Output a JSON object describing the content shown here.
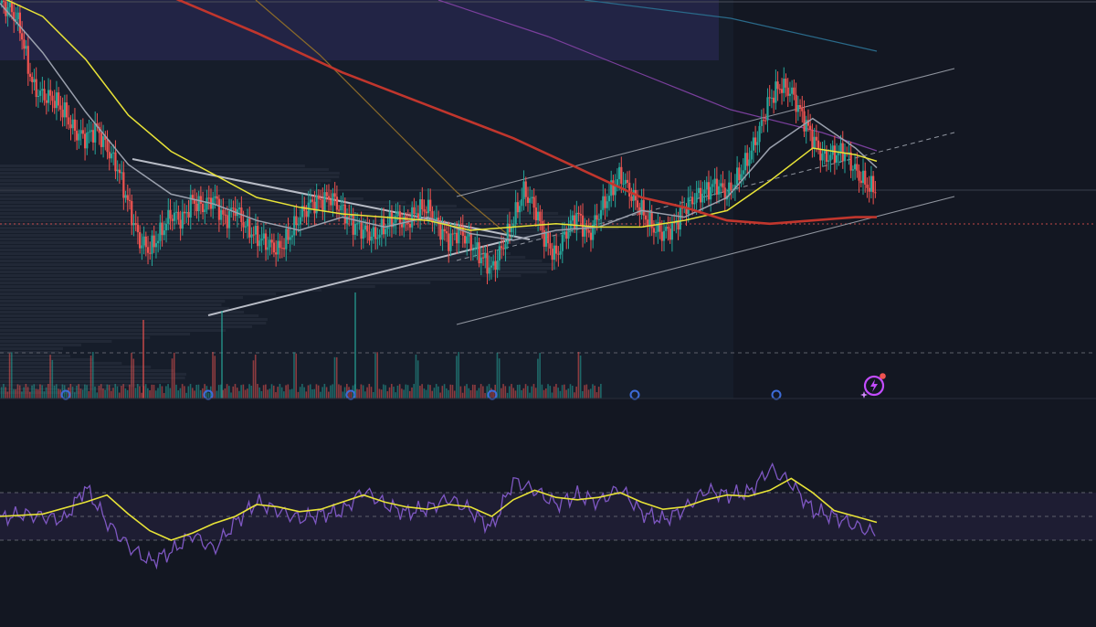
{
  "theme": {
    "background": "#131722",
    "shade_background": "#1a2232",
    "up_color": "#26a69a",
    "down_color": "#ef5350",
    "ma_fast_color": "#9aa0ad",
    "ma_mid_color": "#e8e337",
    "ma_slow_color": "#c1362d",
    "ma_orange_color": "#8a6a2a",
    "ma_purple_color": "#7a3f9c",
    "ma_blue_color": "#2a6a8a",
    "rsi_color": "#7e57c2",
    "rsi_ma_color": "#e8e337",
    "trendline_color": "#b8bcc6",
    "channel_color": "#8f949e",
    "event_marker_color": "#3d6cd9"
  },
  "icons": {
    "assistant": "sparkle-lightning-icon"
  },
  "chart_data": [
    {
      "type": "candlestick",
      "pane": "price",
      "title": "",
      "x_range": [
        0,
        410
      ],
      "ylim": [
        0,
        100
      ],
      "grid": false,
      "ohlc_close_path": [
        [
          0,
          99
        ],
        [
          5,
          97
        ],
        [
          8,
          94
        ],
        [
          10,
          90
        ],
        [
          13,
          80
        ],
        [
          16,
          73
        ],
        [
          20,
          71
        ],
        [
          25,
          70
        ],
        [
          30,
          66
        ],
        [
          35,
          60
        ],
        [
          40,
          58
        ],
        [
          45,
          61
        ],
        [
          50,
          55
        ],
        [
          55,
          49
        ],
        [
          60,
          38
        ],
        [
          65,
          27
        ],
        [
          70,
          24
        ],
        [
          75,
          29
        ],
        [
          80,
          35
        ],
        [
          85,
          33
        ],
        [
          90,
          39
        ],
        [
          95,
          37
        ],
        [
          100,
          40
        ],
        [
          105,
          33
        ],
        [
          110,
          37
        ],
        [
          115,
          31
        ],
        [
          120,
          28
        ],
        [
          125,
          26
        ],
        [
          130,
          24
        ],
        [
          135,
          28
        ],
        [
          140,
          34
        ],
        [
          145,
          38
        ],
        [
          150,
          39
        ],
        [
          155,
          40
        ],
        [
          160,
          36
        ],
        [
          165,
          32
        ],
        [
          170,
          30
        ],
        [
          175,
          28
        ],
        [
          180,
          31
        ],
        [
          185,
          34
        ],
        [
          190,
          32
        ],
        [
          195,
          36
        ],
        [
          200,
          37
        ],
        [
          205,
          31
        ],
        [
          210,
          27
        ],
        [
          215,
          30
        ],
        [
          220,
          26
        ],
        [
          225,
          22
        ],
        [
          230,
          18
        ],
        [
          235,
          25
        ],
        [
          240,
          33
        ],
        [
          245,
          42
        ],
        [
          250,
          37
        ],
        [
          255,
          27
        ],
        [
          260,
          22
        ],
        [
          265,
          30
        ],
        [
          270,
          35
        ],
        [
          275,
          28
        ],
        [
          280,
          35
        ],
        [
          285,
          41
        ],
        [
          290,
          47
        ],
        [
          295,
          41
        ],
        [
          300,
          36
        ],
        [
          305,
          31
        ],
        [
          310,
          29
        ],
        [
          315,
          31
        ],
        [
          320,
          37
        ],
        [
          325,
          40
        ],
        [
          330,
          42
        ],
        [
          335,
          44
        ],
        [
          340,
          41
        ],
        [
          345,
          46
        ],
        [
          350,
          52
        ],
        [
          355,
          60
        ],
        [
          360,
          70
        ],
        [
          365,
          74
        ],
        [
          370,
          72
        ],
        [
          375,
          65
        ],
        [
          380,
          58
        ],
        [
          385,
          52
        ],
        [
          390,
          53
        ],
        [
          395,
          54
        ],
        [
          400,
          48
        ],
        [
          405,
          44
        ],
        [
          410,
          42
        ]
      ],
      "moving_averages": [
        {
          "name": "",
          "color": "#9aa0ad",
          "values": [
            [
              0,
              99
            ],
            [
              20,
              84
            ],
            [
              40,
              66
            ],
            [
              60,
              50
            ],
            [
              80,
              41
            ],
            [
              100,
              38
            ],
            [
              120,
              33
            ],
            [
              140,
              30
            ],
            [
              160,
              34
            ],
            [
              180,
              31
            ],
            [
              200,
              34
            ],
            [
              220,
              29
            ],
            [
              240,
              27
            ],
            [
              260,
              30
            ],
            [
              280,
              31
            ],
            [
              300,
              36
            ],
            [
              320,
              34
            ],
            [
              340,
              40
            ],
            [
              360,
              55
            ],
            [
              380,
              64
            ],
            [
              400,
              55
            ],
            [
              410,
              49
            ]
          ]
        },
        {
          "name": "",
          "color": "#e8e337",
          "values": [
            [
              0,
              101
            ],
            [
              20,
              95
            ],
            [
              40,
              82
            ],
            [
              60,
              65
            ],
            [
              80,
              54
            ],
            [
              100,
              47
            ],
            [
              120,
              40
            ],
            [
              140,
              37
            ],
            [
              160,
              35
            ],
            [
              180,
              34
            ],
            [
              200,
              33
            ],
            [
              220,
              30
            ],
            [
              240,
              31
            ],
            [
              260,
              32
            ],
            [
              280,
              31
            ],
            [
              300,
              31
            ],
            [
              320,
              33
            ],
            [
              340,
              36
            ],
            [
              360,
              45
            ],
            [
              380,
              55
            ],
            [
              400,
              53
            ],
            [
              410,
              51
            ]
          ]
        },
        {
          "name": "",
          "color": "#c1362d",
          "values": [
            [
              80,
              101
            ],
            [
              120,
              90
            ],
            [
              160,
              78
            ],
            [
              200,
              68
            ],
            [
              240,
              58
            ],
            [
              260,
              52
            ],
            [
              280,
              46
            ],
            [
              300,
              40
            ],
            [
              320,
              37
            ],
            [
              340,
              33
            ],
            [
              360,
              32
            ],
            [
              380,
              33
            ],
            [
              400,
              34
            ],
            [
              410,
              34
            ]
          ]
        }
      ]
    },
    {
      "type": "line",
      "pane": "rsi",
      "title": "",
      "x_range": [
        0,
        410
      ],
      "ylim": [
        0,
        100
      ],
      "grid": false,
      "levels": [
        70,
        50,
        30
      ],
      "series": [
        {
          "name": "",
          "color": "#7e57c2",
          "values": [
            [
              0,
              48
            ],
            [
              10,
              52
            ],
            [
              20,
              50
            ],
            [
              30,
              47
            ],
            [
              40,
              75
            ],
            [
              45,
              60
            ],
            [
              50,
              45
            ],
            [
              60,
              25
            ],
            [
              70,
              12
            ],
            [
              80,
              20
            ],
            [
              90,
              35
            ],
            [
              100,
              22
            ],
            [
              110,
              45
            ],
            [
              120,
              62
            ],
            [
              130,
              55
            ],
            [
              140,
              48
            ],
            [
              150,
              52
            ],
            [
              160,
              54
            ],
            [
              170,
              72
            ],
            [
              180,
              60
            ],
            [
              190,
              53
            ],
            [
              200,
              57
            ],
            [
              210,
              65
            ],
            [
              220,
              55
            ],
            [
              230,
              40
            ],
            [
              240,
              80
            ],
            [
              250,
              72
            ],
            [
              260,
              60
            ],
            [
              270,
              68
            ],
            [
              280,
              62
            ],
            [
              290,
              74
            ],
            [
              300,
              53
            ],
            [
              310,
              47
            ],
            [
              320,
              56
            ],
            [
              330,
              72
            ],
            [
              340,
              68
            ],
            [
              350,
              70
            ],
            [
              360,
              90
            ],
            [
              370,
              78
            ],
            [
              380,
              55
            ],
            [
              390,
              50
            ],
            [
              400,
              42
            ],
            [
              410,
              35
            ]
          ]
        },
        {
          "name": "",
          "color": "#e8e337",
          "values": [
            [
              0,
              50
            ],
            [
              20,
              52
            ],
            [
              40,
              62
            ],
            [
              50,
              68
            ],
            [
              60,
              52
            ],
            [
              70,
              38
            ],
            [
              80,
              30
            ],
            [
              90,
              36
            ],
            [
              100,
              44
            ],
            [
              110,
              50
            ],
            [
              120,
              60
            ],
            [
              130,
              58
            ],
            [
              140,
              54
            ],
            [
              150,
              56
            ],
            [
              160,
              62
            ],
            [
              170,
              68
            ],
            [
              180,
              62
            ],
            [
              190,
              58
            ],
            [
              200,
              56
            ],
            [
              210,
              60
            ],
            [
              220,
              58
            ],
            [
              230,
              50
            ],
            [
              240,
              64
            ],
            [
              250,
              72
            ],
            [
              260,
              66
            ],
            [
              270,
              64
            ],
            [
              280,
              66
            ],
            [
              290,
              70
            ],
            [
              300,
              62
            ],
            [
              310,
              56
            ],
            [
              320,
              58
            ],
            [
              330,
              64
            ],
            [
              340,
              68
            ],
            [
              350,
              67
            ],
            [
              360,
              72
            ],
            [
              370,
              82
            ],
            [
              380,
              70
            ],
            [
              390,
              55
            ],
            [
              400,
              50
            ],
            [
              410,
              45
            ]
          ]
        }
      ]
    }
  ]
}
